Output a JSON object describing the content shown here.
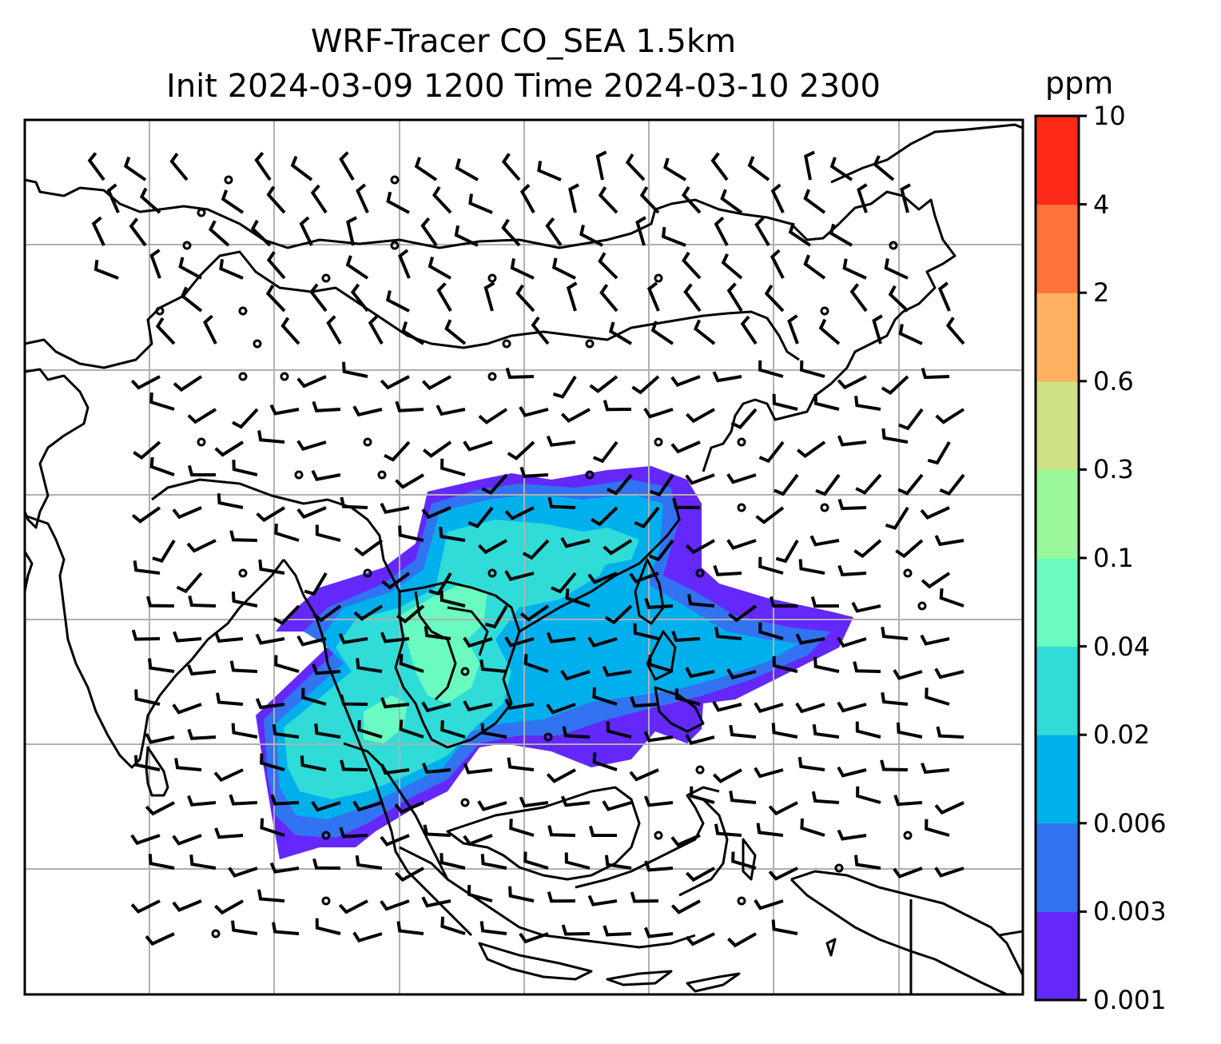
{
  "figure": {
    "title_line1": "WRF-Tracer CO_SEA 1.5km",
    "title_line2": "Init 2024-03-09 1200 Time 2024-03-10 2300"
  },
  "colorbar": {
    "unit": "ppm",
    "ticks": [
      "0.001",
      "0.003",
      "0.006",
      "0.02",
      "0.04",
      "0.1",
      "0.3",
      "0.6",
      "2",
      "4",
      "10"
    ],
    "colors": [
      "#6428fa",
      "#3273f2",
      "#00b0ec",
      "#2fdcd8",
      "#6afbc0",
      "#9af89a",
      "#cde284",
      "#ffb060",
      "#ff723c",
      "#ff2a18"
    ]
  },
  "map": {
    "field": "CO tracer concentration at 1.5km",
    "overlay": "wind barbs",
    "gridlines": true,
    "coastlines": true
  }
}
